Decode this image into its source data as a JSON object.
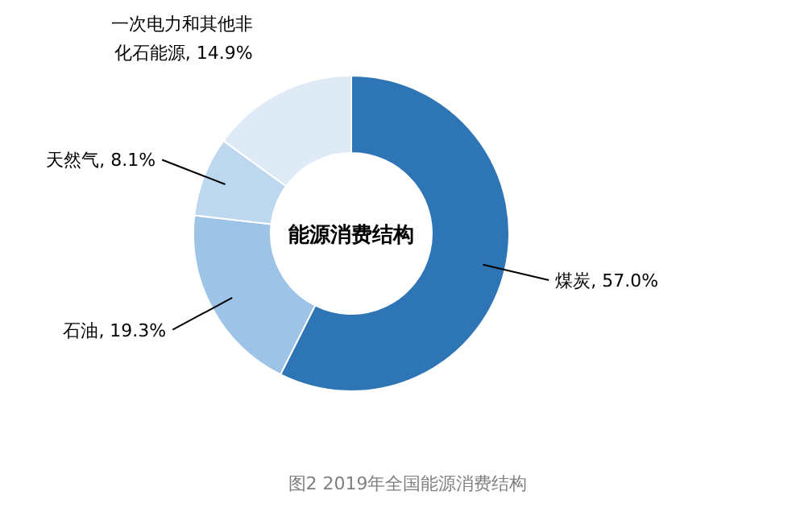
{
  "chart_data": {
    "type": "donut",
    "title": "图2 2019年全国能源消费结构",
    "categories": [
      "煤炭",
      "石油",
      "天然气",
      "一次电力和其他非化石能源"
    ],
    "values": [
      57.0,
      19.3,
      8.1,
      14.9
    ],
    "value_labels": [
      "57.0%",
      "19.3%",
      "8.1%",
      "14.9%"
    ],
    "colors": [
      "#2e75b6",
      "#9dc3e6",
      "#bdd7ee",
      "#deebf7"
    ],
    "annotations": [
      "能源消费结构"
    ]
  }
}
